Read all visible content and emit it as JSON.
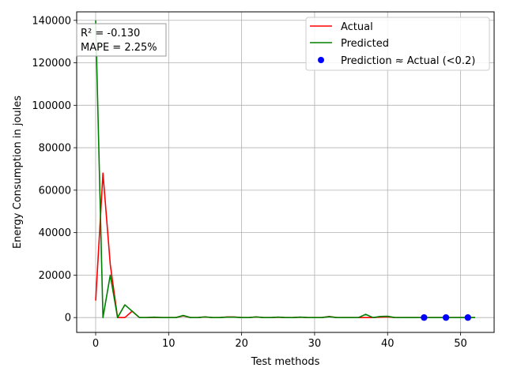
{
  "chart_data": {
    "type": "line",
    "title": "",
    "xlabel": "Test methods",
    "ylabel": "Energy Consumption in joules",
    "xlim": [
      -2.6,
      54.6
    ],
    "ylim": [
      -7000,
      144000
    ],
    "xticks": [
      0,
      10,
      20,
      30,
      40,
      50
    ],
    "yticks": [
      0,
      20000,
      40000,
      60000,
      80000,
      100000,
      120000,
      140000
    ],
    "xtick_labels": [
      "0",
      "10",
      "20",
      "30",
      "40",
      "50"
    ],
    "ytick_labels": [
      "0",
      "20000",
      "40000",
      "60000",
      "80000",
      "100000",
      "120000",
      "140000"
    ],
    "grid": true,
    "legend_position": "top-right",
    "metrics_box": {
      "line1": "R² = -0.130",
      "line2": "MAPE = 2.25%",
      "position": "top-left"
    },
    "x": [
      0,
      1,
      2,
      3,
      4,
      5,
      6,
      7,
      8,
      9,
      10,
      11,
      12,
      13,
      14,
      15,
      16,
      17,
      18,
      19,
      20,
      21,
      22,
      23,
      24,
      25,
      26,
      27,
      28,
      29,
      30,
      31,
      32,
      33,
      34,
      35,
      36,
      37,
      38,
      39,
      40,
      41,
      42,
      43,
      44,
      45,
      46,
      47,
      48,
      49,
      50,
      51,
      52
    ],
    "series": [
      {
        "name": "Actual",
        "color": "#ff0000",
        "values": [
          8000,
          68000,
          25000,
          0,
          0,
          3000,
          0,
          0,
          100,
          0,
          0,
          0,
          800,
          0,
          0,
          300,
          0,
          0,
          300,
          300,
          0,
          0,
          300,
          0,
          0,
          200,
          0,
          0,
          200,
          0,
          0,
          0,
          500,
          0,
          0,
          0,
          0,
          0,
          0,
          200,
          300,
          0,
          0,
          0,
          0,
          0,
          0,
          0,
          0,
          0,
          0,
          0,
          0
        ]
      },
      {
        "name": "Predicted",
        "color": "#008000",
        "values": [
          140000,
          0,
          20000,
          0,
          6000,
          3000,
          0,
          0,
          200,
          0,
          0,
          0,
          1000,
          0,
          0,
          300,
          0,
          0,
          200,
          200,
          0,
          0,
          300,
          0,
          0,
          200,
          0,
          0,
          200,
          0,
          0,
          0,
          400,
          0,
          0,
          0,
          0,
          1500,
          0,
          500,
          600,
          0,
          0,
          0,
          0,
          0,
          0,
          0,
          0,
          0,
          0,
          0,
          0
        ]
      }
    ],
    "highlight": {
      "name": "Prediction ≈ Actual (<0.2)",
      "color": "#0000ff",
      "points": [
        {
          "x": 45,
          "y": 0
        },
        {
          "x": 48,
          "y": 0
        },
        {
          "x": 51,
          "y": 0
        }
      ]
    }
  }
}
